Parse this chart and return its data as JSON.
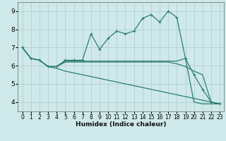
{
  "xlabel": "Humidex (Indice chaleur)",
  "bg_color": "#cfe9ea",
  "grid_color": "#b0d5d5",
  "line_color": "#2e7d72",
  "xlim": [
    -0.5,
    23.5
  ],
  "ylim": [
    3.5,
    9.5
  ],
  "yticks": [
    4,
    5,
    6,
    7,
    8,
    9
  ],
  "xticks": [
    0,
    1,
    2,
    3,
    4,
    5,
    6,
    7,
    8,
    9,
    10,
    11,
    12,
    13,
    14,
    15,
    16,
    17,
    18,
    19,
    20,
    21,
    22,
    23
  ],
  "series1_x": [
    0,
    1,
    2,
    3,
    4,
    5,
    6,
    7,
    8,
    9,
    10,
    11,
    12,
    13,
    14,
    15,
    16,
    17,
    18,
    19,
    20,
    21,
    22,
    23
  ],
  "series1_y": [
    7.0,
    6.4,
    6.3,
    5.95,
    5.95,
    6.3,
    6.3,
    6.3,
    7.75,
    6.9,
    7.5,
    7.9,
    7.75,
    7.9,
    8.6,
    8.8,
    8.4,
    9.0,
    8.65,
    6.4,
    5.5,
    4.7,
    4.0,
    3.9
  ],
  "series2_x": [
    0,
    1,
    2,
    3,
    4,
    5,
    6,
    7,
    8,
    9,
    10,
    11,
    12,
    13,
    14,
    15,
    16,
    17,
    18,
    19,
    20,
    21,
    22,
    23
  ],
  "series2_y": [
    7.0,
    6.4,
    6.3,
    5.95,
    5.95,
    6.25,
    6.25,
    6.25,
    6.25,
    6.25,
    6.25,
    6.25,
    6.25,
    6.25,
    6.25,
    6.25,
    6.25,
    6.25,
    6.25,
    6.4,
    4.0,
    3.9,
    3.9,
    3.9
  ],
  "series3_x": [
    0,
    1,
    2,
    3,
    4,
    5,
    6,
    7,
    8,
    9,
    10,
    11,
    12,
    13,
    14,
    15,
    16,
    17,
    18,
    19,
    20,
    21,
    22,
    23
  ],
  "series3_y": [
    7.0,
    6.4,
    6.3,
    5.95,
    5.95,
    6.2,
    6.2,
    6.2,
    6.2,
    6.2,
    6.2,
    6.2,
    6.2,
    6.2,
    6.2,
    6.2,
    6.2,
    6.2,
    6.1,
    5.95,
    5.7,
    5.5,
    4.0,
    3.9
  ],
  "series4_x": [
    0,
    1,
    2,
    3,
    4,
    5,
    6,
    7,
    8,
    9,
    10,
    11,
    12,
    13,
    14,
    15,
    16,
    17,
    18,
    19,
    20,
    21,
    22,
    23
  ],
  "series4_y": [
    7.0,
    6.4,
    6.3,
    5.95,
    5.85,
    5.7,
    5.6,
    5.5,
    5.4,
    5.3,
    5.2,
    5.1,
    5.0,
    4.9,
    4.8,
    4.7,
    4.6,
    4.5,
    4.4,
    4.3,
    4.2,
    4.1,
    4.0,
    3.9
  ]
}
